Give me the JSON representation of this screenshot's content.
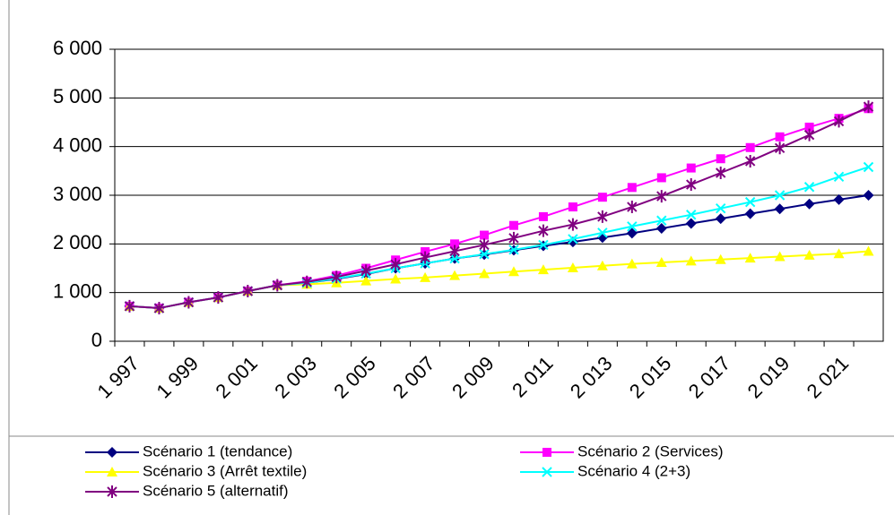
{
  "chart_data": {
    "type": "line",
    "categories": [
      "1 997",
      null,
      "1 999",
      null,
      "2 001",
      null,
      "2 003",
      null,
      "2 005",
      null,
      "2 007",
      null,
      "2 009",
      null,
      "2 011",
      null,
      "2 013",
      null,
      "2 015",
      null,
      "2 017",
      null,
      "2 019",
      null,
      "2 021",
      null
    ],
    "series": [
      {
        "name": "Scénario 1 (tendance)",
        "color": "#000080",
        "marker": "diamond",
        "values": [
          720,
          680,
          800,
          900,
          1030,
          1150,
          1200,
          1280,
          1380,
          1500,
          1600,
          1700,
          1780,
          1870,
          1960,
          2040,
          2130,
          2220,
          2320,
          2420,
          2520,
          2620,
          2720,
          2820,
          2910,
          3000
        ]
      },
      {
        "name": "Scénario 2 (Services)",
        "color": "#ff00ff",
        "marker": "square",
        "values": [
          720,
          680,
          800,
          900,
          1030,
          1150,
          1230,
          1350,
          1500,
          1670,
          1840,
          2000,
          2180,
          2380,
          2560,
          2760,
          2960,
          3160,
          3360,
          3560,
          3750,
          3980,
          4200,
          4400,
          4580,
          4780
        ]
      },
      {
        "name": "Scénario 3 (Arrêt textile)",
        "color": "#ffff00",
        "marker": "triangle",
        "values": [
          720,
          680,
          800,
          900,
          1030,
          1150,
          1170,
          1200,
          1240,
          1280,
          1310,
          1350,
          1390,
          1430,
          1470,
          1510,
          1550,
          1590,
          1620,
          1650,
          1680,
          1710,
          1740,
          1770,
          1800,
          1850
        ]
      },
      {
        "name": "Scénario 4 (2+3)",
        "color": "#00ffff",
        "marker": "x",
        "values": [
          720,
          680,
          800,
          900,
          1030,
          1150,
          1200,
          1290,
          1390,
          1500,
          1600,
          1700,
          1790,
          1880,
          1980,
          2100,
          2230,
          2360,
          2480,
          2600,
          2730,
          2860,
          3000,
          3170,
          3380,
          3580
        ]
      },
      {
        "name": "Scénario 5 (alternatif)",
        "color": "#800080",
        "marker": "star",
        "values": [
          720,
          680,
          800,
          900,
          1030,
          1150,
          1220,
          1320,
          1450,
          1580,
          1720,
          1850,
          1980,
          2120,
          2270,
          2400,
          2560,
          2760,
          2980,
          3220,
          3460,
          3700,
          3970,
          4240,
          4520,
          4820
        ]
      }
    ],
    "ylim": [
      0,
      6000
    ],
    "yticks": [
      0,
      {
        "value": 1000,
        "label": "1 000"
      },
      {
        "value": 2000,
        "label": "2 000"
      },
      {
        "value": 3000,
        "label": "3 000"
      },
      {
        "value": 4000,
        "label": "4 000"
      },
      {
        "value": 5000,
        "label": "5 000"
      },
      {
        "value": 6000,
        "label": "6 000"
      }
    ],
    "grid": true
  }
}
